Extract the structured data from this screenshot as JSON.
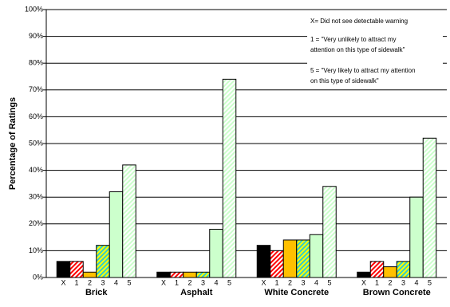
{
  "chart_data": {
    "type": "grouped-bar",
    "y_label": "Percentage of Ratings",
    "categories": [
      "Brick",
      "Asphalt",
      "White Concrete",
      "Brown Concrete"
    ],
    "series": [
      {
        "name": "X",
        "color": "#000000",
        "values": [
          6,
          2,
          12,
          2
        ]
      },
      {
        "name": "1",
        "color": "#ff0000",
        "hatch": "#ffffff",
        "values": [
          6,
          2,
          10,
          6
        ]
      },
      {
        "name": "2",
        "color": "#ffc000",
        "values": [
          2,
          2,
          14,
          4
        ]
      },
      {
        "name": "3",
        "color": "#33cccc",
        "hatch": "#ffff00",
        "values": [
          12,
          2,
          14,
          6
        ]
      },
      {
        "name": "4",
        "color": "#ccffcc",
        "values": [
          32,
          18,
          16,
          30
        ]
      },
      {
        "name": "5",
        "color": "#ffffff",
        "hatch": "#ccffcc",
        "values": [
          42,
          74,
          34,
          52
        ]
      }
    ],
    "ylim": [
      0,
      100
    ],
    "yticks": [
      {
        "value": 0,
        "label": "0%"
      },
      {
        "value": 10,
        "label": "10%"
      },
      {
        "value": 20,
        "label": "20%"
      },
      {
        "value": 30,
        "label": "30%"
      },
      {
        "value": 40,
        "label": "40%"
      },
      {
        "value": 50,
        "label": "50%"
      },
      {
        "value": 60,
        "label": "60%"
      },
      {
        "value": 70,
        "label": "70%"
      },
      {
        "value": 80,
        "label": "80%"
      },
      {
        "value": 90,
        "label": "90%"
      },
      {
        "value": 100,
        "label": "100%"
      }
    ],
    "grid": true,
    "annotations": [
      "X= Did not see detectable warning",
      "1 = \"Very unlikely to attract my",
      "attention on this type of sidewalk\"",
      "5 = \"Very likely to attract my attention",
      "on this type of sidewalk\""
    ]
  }
}
